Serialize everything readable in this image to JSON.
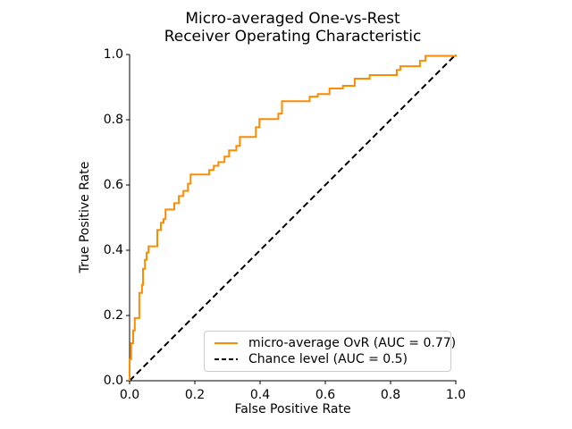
{
  "chart_data": {
    "type": "line",
    "title": "Micro-averaged One-vs-Rest\nReceiver Operating Characteristic",
    "title_lines": [
      "Micro-averaged One-vs-Rest",
      "Receiver Operating Characteristic"
    ],
    "xlabel": "False Positive Rate",
    "ylabel": "True Positive Rate",
    "xlim": [
      0.0,
      1.0
    ],
    "ylim": [
      0.0,
      1.0
    ],
    "xticks": [
      0.0,
      0.2,
      0.4,
      0.6,
      0.8,
      1.0
    ],
    "yticks": [
      0.0,
      0.2,
      0.4,
      0.6,
      0.8,
      1.0
    ],
    "xtick_labels": [
      "0.0",
      "0.2",
      "0.4",
      "0.6",
      "0.8",
      "1.0"
    ],
    "ytick_labels": [
      "0.0",
      "0.2",
      "0.4",
      "0.6",
      "0.8",
      "1.0"
    ],
    "grid": false,
    "legend_position": "lower right",
    "axis_color": "#000000",
    "series": [
      {
        "name": "micro-average OvR (AUC = 0.77)",
        "kind": "roc-step-curve",
        "color": "#ff8c00",
        "linestyle": "solid",
        "linewidth": 2,
        "auc": 0.77,
        "points": [
          [
            0.0,
            0.0
          ],
          [
            0.0,
            0.066
          ],
          [
            0.005,
            0.066
          ],
          [
            0.005,
            0.115
          ],
          [
            0.011,
            0.115
          ],
          [
            0.011,
            0.154
          ],
          [
            0.016,
            0.154
          ],
          [
            0.016,
            0.192
          ],
          [
            0.03,
            0.192
          ],
          [
            0.03,
            0.269
          ],
          [
            0.038,
            0.269
          ],
          [
            0.038,
            0.294
          ],
          [
            0.041,
            0.294
          ],
          [
            0.041,
            0.343
          ],
          [
            0.047,
            0.343
          ],
          [
            0.047,
            0.371
          ],
          [
            0.052,
            0.371
          ],
          [
            0.052,
            0.393
          ],
          [
            0.058,
            0.393
          ],
          [
            0.058,
            0.412
          ],
          [
            0.085,
            0.412
          ],
          [
            0.085,
            0.462
          ],
          [
            0.096,
            0.462
          ],
          [
            0.096,
            0.484
          ],
          [
            0.104,
            0.484
          ],
          [
            0.104,
            0.495
          ],
          [
            0.11,
            0.495
          ],
          [
            0.11,
            0.525
          ],
          [
            0.137,
            0.525
          ],
          [
            0.137,
            0.544
          ],
          [
            0.151,
            0.544
          ],
          [
            0.151,
            0.566
          ],
          [
            0.165,
            0.566
          ],
          [
            0.165,
            0.582
          ],
          [
            0.179,
            0.582
          ],
          [
            0.179,
            0.604
          ],
          [
            0.187,
            0.604
          ],
          [
            0.187,
            0.632
          ],
          [
            0.244,
            0.632
          ],
          [
            0.244,
            0.646
          ],
          [
            0.258,
            0.646
          ],
          [
            0.258,
            0.659
          ],
          [
            0.272,
            0.659
          ],
          [
            0.272,
            0.67
          ],
          [
            0.291,
            0.67
          ],
          [
            0.291,
            0.687
          ],
          [
            0.305,
            0.687
          ],
          [
            0.305,
            0.706
          ],
          [
            0.327,
            0.706
          ],
          [
            0.327,
            0.72
          ],
          [
            0.338,
            0.72
          ],
          [
            0.338,
            0.747
          ],
          [
            0.387,
            0.747
          ],
          [
            0.387,
            0.777
          ],
          [
            0.398,
            0.777
          ],
          [
            0.398,
            0.802
          ],
          [
            0.456,
            0.802
          ],
          [
            0.456,
            0.819
          ],
          [
            0.467,
            0.819
          ],
          [
            0.467,
            0.857
          ],
          [
            0.552,
            0.857
          ],
          [
            0.552,
            0.871
          ],
          [
            0.577,
            0.871
          ],
          [
            0.577,
            0.879
          ],
          [
            0.613,
            0.879
          ],
          [
            0.613,
            0.896
          ],
          [
            0.654,
            0.896
          ],
          [
            0.654,
            0.904
          ],
          [
            0.69,
            0.904
          ],
          [
            0.69,
            0.926
          ],
          [
            0.736,
            0.926
          ],
          [
            0.736,
            0.937
          ],
          [
            0.819,
            0.937
          ],
          [
            0.819,
            0.953
          ],
          [
            0.83,
            0.953
          ],
          [
            0.83,
            0.964
          ],
          [
            0.89,
            0.964
          ],
          [
            0.89,
            0.981
          ],
          [
            0.907,
            0.981
          ],
          [
            0.907,
            0.996
          ],
          [
            1.0,
            0.996
          ],
          [
            1.0,
            1.0
          ]
        ]
      },
      {
        "name": "Chance level (AUC = 0.5)",
        "kind": "chance-level-line",
        "color": "#000000",
        "linestyle": "dashed",
        "linewidth": 2,
        "auc": 0.5,
        "points": [
          [
            0.0,
            0.0
          ],
          [
            1.0,
            1.0
          ]
        ]
      }
    ]
  }
}
